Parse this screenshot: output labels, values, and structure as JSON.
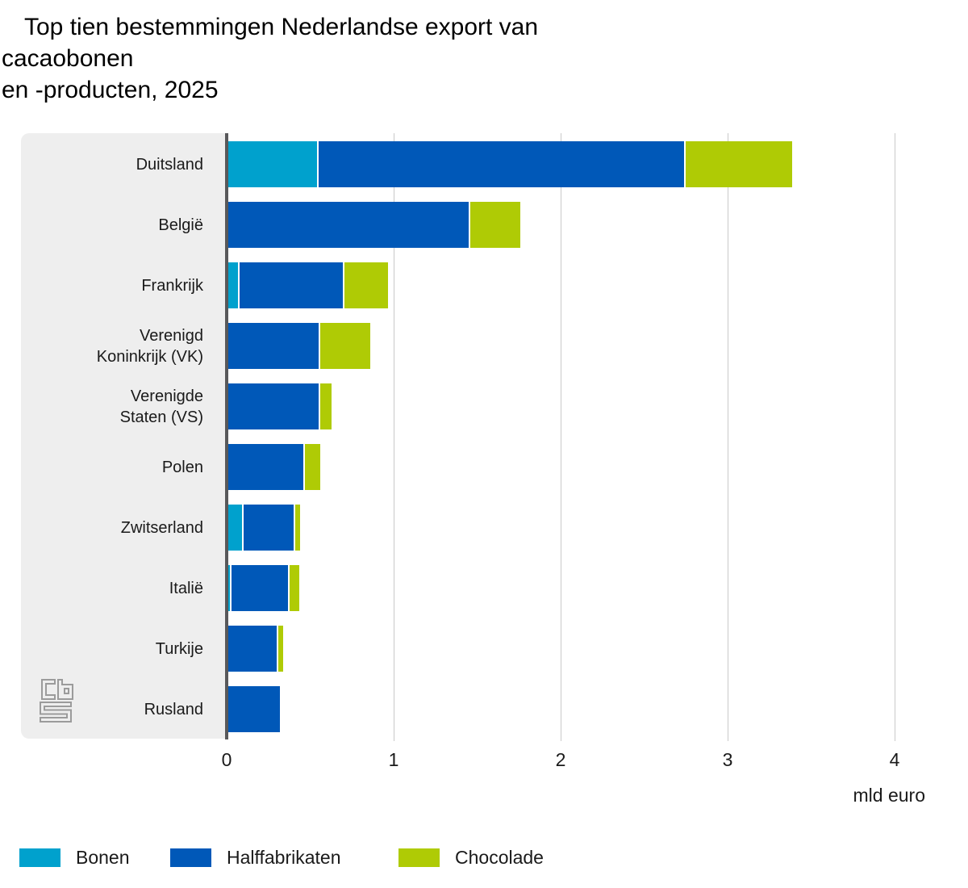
{
  "title": {
    "text": "Top tien bestemmingen Nederlandse export van\ncacaobonen\nen -producten, 2025"
  },
  "chart_data": {
    "type": "bar",
    "orientation": "horizontal",
    "stacked": true,
    "title": "Top tien bestemmingen Nederlandse export van cacaobonen en -producten, 2025",
    "categories": [
      "Duitsland",
      "België",
      "Frankrijk",
      "Verenigd\nKoninkrijk (VK)",
      "Verenigde\nStaten (VS)",
      "Polen",
      "Zwitserland",
      "Italië",
      "Turkije",
      "Rusland"
    ],
    "series": [
      {
        "name": "Bonen",
        "color": "#00a1cd",
        "values": [
          0.53,
          0,
          0.06,
          0,
          0,
          0,
          0.08,
          0.01,
          0,
          0
        ]
      },
      {
        "name": "Halffabrikaten",
        "color": "#0058b8",
        "values": [
          2.19,
          1.44,
          0.62,
          0.54,
          0.54,
          0.45,
          0.3,
          0.34,
          0.29,
          0.31
        ]
      },
      {
        "name": "Chocolade",
        "color": "#afcb05",
        "values": [
          0.64,
          0.3,
          0.26,
          0.3,
          0.07,
          0.09,
          0.03,
          0.06,
          0.03,
          0
        ]
      }
    ],
    "totals": [
      3.36,
      1.74,
      0.94,
      0.84,
      0.61,
      0.54,
      0.41,
      0.41,
      0.32,
      0.31
    ],
    "xlabel": "mld euro",
    "xlim": [
      0,
      4
    ],
    "x_ticks": [
      "0",
      "1",
      "2",
      "3",
      "4"
    ],
    "grid": true,
    "legend_position": "bottom"
  },
  "axis": {
    "tick_labels": [
      "0",
      "1",
      "2",
      "3",
      "4"
    ],
    "unit_label": "mld euro"
  },
  "legend": {
    "items": [
      {
        "label": "Bonen",
        "color": "#00a1cd"
      },
      {
        "label": "Halffabrikaten",
        "color": "#0058b8"
      },
      {
        "label": "Chocolade",
        "color": "#afcb05"
      }
    ]
  },
  "branding": {
    "logo_name": "cbs-logo"
  },
  "colors": {
    "bonen": "#00a1cd",
    "halffabrikaten": "#0058b8",
    "chocolade": "#afcb05",
    "panel_bg": "#eeeeee",
    "axis_line": "#58585a",
    "gridline": "#c9c9c9",
    "logo": "#9b9b9b",
    "text": "#1a1a1a"
  }
}
